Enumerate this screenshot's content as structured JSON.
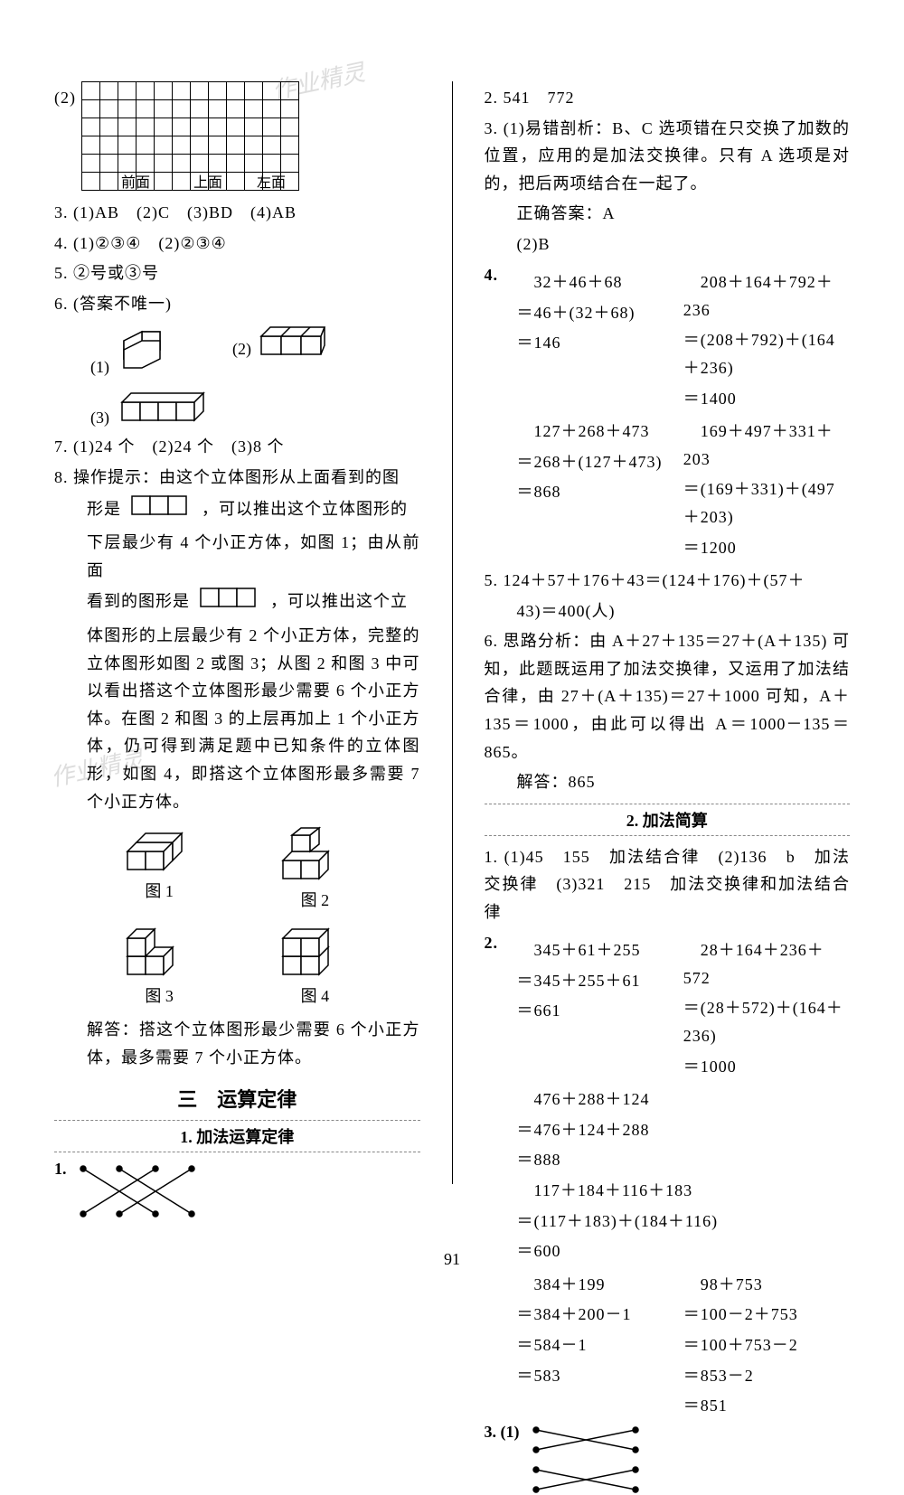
{
  "page_number": "91",
  "watermark_text": "作业精灵",
  "colors": {
    "text": "#000000",
    "bg": "#ffffff",
    "divider": "#888888"
  },
  "left": {
    "item2_label": "(2)",
    "grid_labels": [
      "前面",
      "上面",
      "左面"
    ],
    "item3": "3. (1)AB　(2)C　(3)BD　(4)AB",
    "item4": "4. (1)②③④　(2)②③④",
    "item5": "5. ②号或③号",
    "item6": "6. (答案不唯一)",
    "item6_sub1": "(1)",
    "item6_sub2": "(2)",
    "item6_sub3": "(3)",
    "item7": "7. (1)24 个　(2)24 个　(3)8 个",
    "item8_lead": "8. 操作提示：由这个立体图形从上面看到的图",
    "item8_p1a": "形是",
    "item8_p1b": "，可以推出这个立体图形的",
    "item8_p2": "下层最少有 4 个小正方体，如图 1；由从前面",
    "item8_p3a": "看到的图形是",
    "item8_p3b": "，可以推出这个立",
    "item8_p4": "体图形的上层最少有 2 个小正方体，完整的立体图形如图 2 或图 3；从图 2 和图 3 中可以看出搭这个立体图形最少需要 6 个小正方体。在图 2 和图 3 的上层再加上 1 个小正方体，仍可得到满足题中已知条件的立体图形，如图 4，即搭这个立体图形最多需要 7 个小正方体。",
    "fig_labels": [
      "图 1",
      "图 2",
      "图 3",
      "图 4"
    ],
    "item8_ans": "解答：搭这个立体图形最少需要 6 个小正方体，最多需要 7 个小正方体。",
    "section3_title": "三　运算定律",
    "sub1_title": "1. 加法运算定律",
    "bottom_1": "1."
  },
  "right": {
    "item2": "2. 541　772",
    "item3_lead": "3. (1)易错剖析：B、C 选项错在只交换了加数的位置，应用的是加法交换律。只有 A 选项是对的，把后两项结合在一起了。",
    "item3_ans": "正确答案：A",
    "item3_2": "(2)B",
    "item4_label": "4.",
    "eq4": {
      "a1": "　32＋46＋68",
      "b1": "　208＋164＋792＋236",
      "a2": "＝46＋(32＋68)",
      "b2": "＝(208＋792)＋(164＋236)",
      "a3": "＝146",
      "b3": "＝1400",
      "c1": "　127＋268＋473",
      "d1": "　169＋497＋331＋203",
      "c2": "＝268＋(127＋473)",
      "d2": "＝(169＋331)＋(497＋203)",
      "c3": "＝868",
      "d3": "＝1200"
    },
    "item5_1": "5. 124＋57＋176＋43＝(124＋176)＋(57＋",
    "item5_2": "43)＝400(人)",
    "item6_lead": "6. 思路分析：由 A＋27＋135＝27＋(A＋135) 可知，此题既运用了加法交换律，又运用了加法结合律，由 27＋(A＋135)＝27＋1000 可知，A＋135＝1000，由此可以得出 A＝1000－135＝865。",
    "item6_ans": "解答：865",
    "sub2_title": "2. 加法简算",
    "r1": "1. (1)45　155　加法结合律　(2)136　b　加法交换律　(3)321　215　加法交换律和加法结合律",
    "r2_label": "2.",
    "eq2": {
      "a1": "　345＋61＋255",
      "b1": "　28＋164＋236＋572",
      "a2": "＝345＋255＋61",
      "b2": "＝(28＋572)＋(164＋236)",
      "a3": "＝661",
      "b3": "＝1000",
      "c1": "　476＋288＋124",
      "c2": "＝476＋124＋288",
      "c3": "＝888",
      "d1": "　117＋184＋116＋183",
      "d2": "＝(117＋183)＋(184＋116)",
      "d3": "＝600",
      "e1": "　384＋199",
      "f1": "　98＋753",
      "e2": "＝384＋200－1",
      "f2": "＝100－2＋753",
      "e3": "＝584－1",
      "f3": "＝100＋753－2",
      "e4": "＝583",
      "f4": "＝853－2",
      "f5": "＝851"
    },
    "r3_label": "3. (1)"
  }
}
